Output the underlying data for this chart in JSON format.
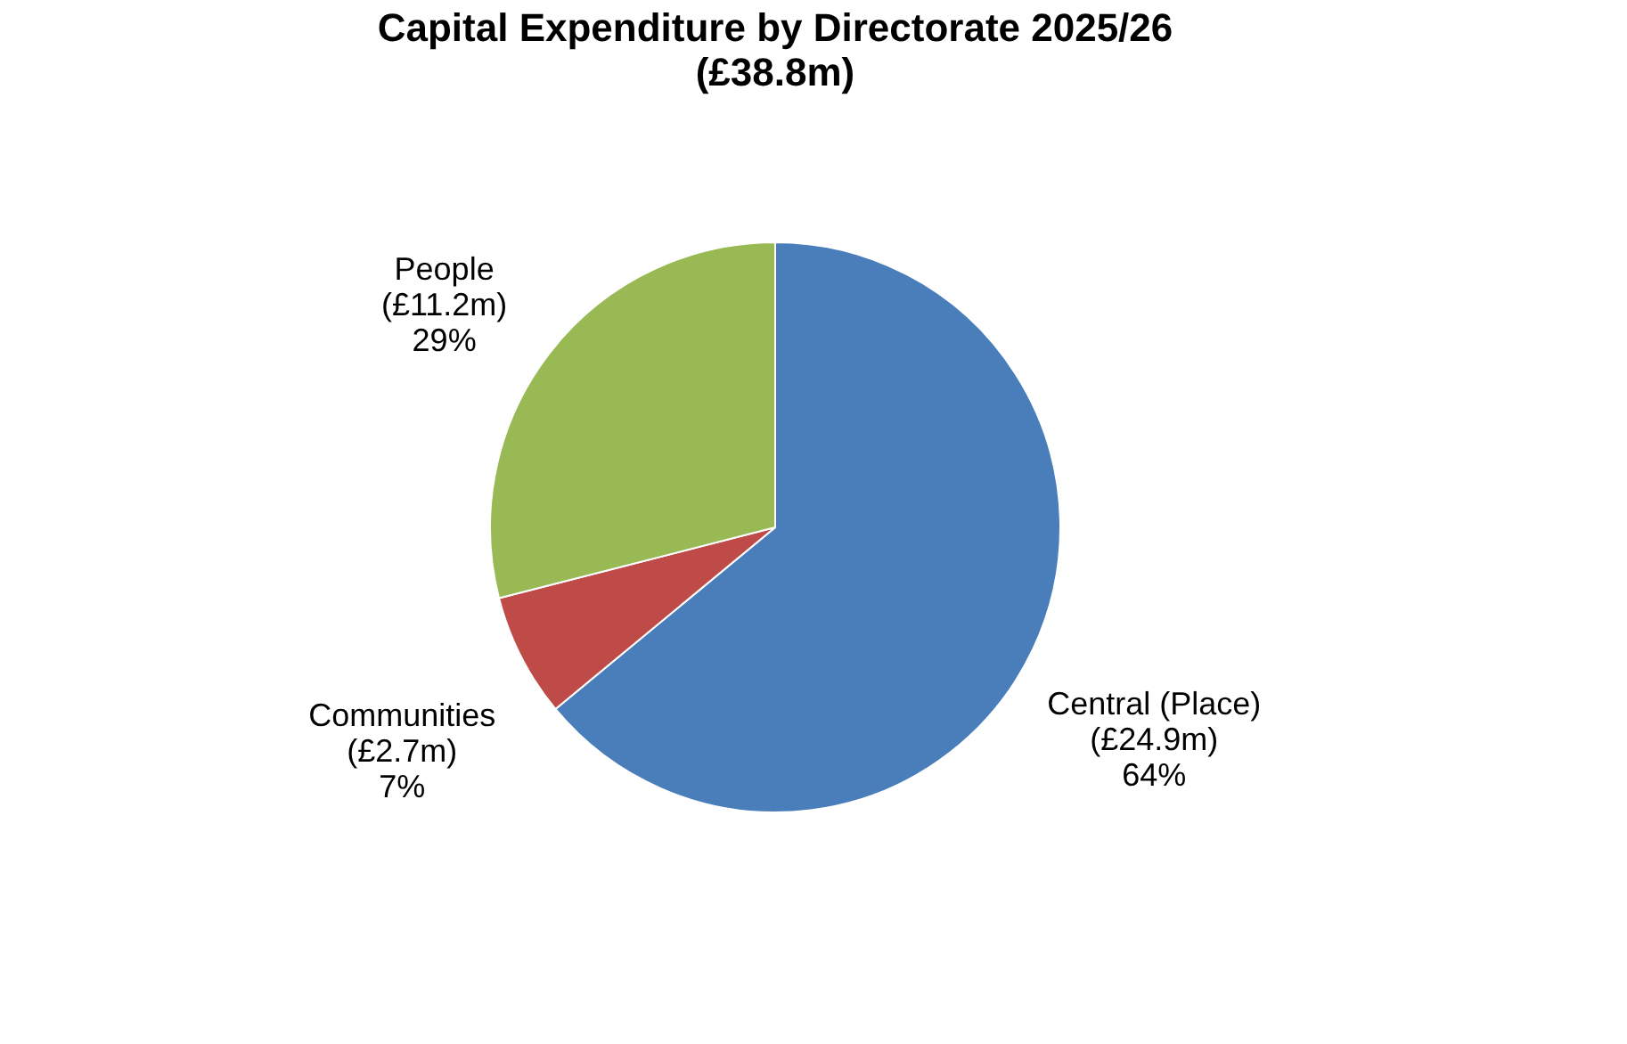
{
  "chart_data": {
    "type": "pie",
    "title": "Capital Expenditure by Directorate 2025/26",
    "subtitle": "(£38.8m)",
    "categories": [
      "Central (Place)",
      "Communities",
      "People"
    ],
    "values": [
      64,
      7,
      29
    ],
    "value_labels": [
      "(£24.9m)\n64%",
      "(£2.7m)\n7%",
      "(£11.2m)\n29%"
    ],
    "colors": [
      "#4a7ebb",
      "#be4b48",
      "#98b954"
    ],
    "legend": false
  }
}
